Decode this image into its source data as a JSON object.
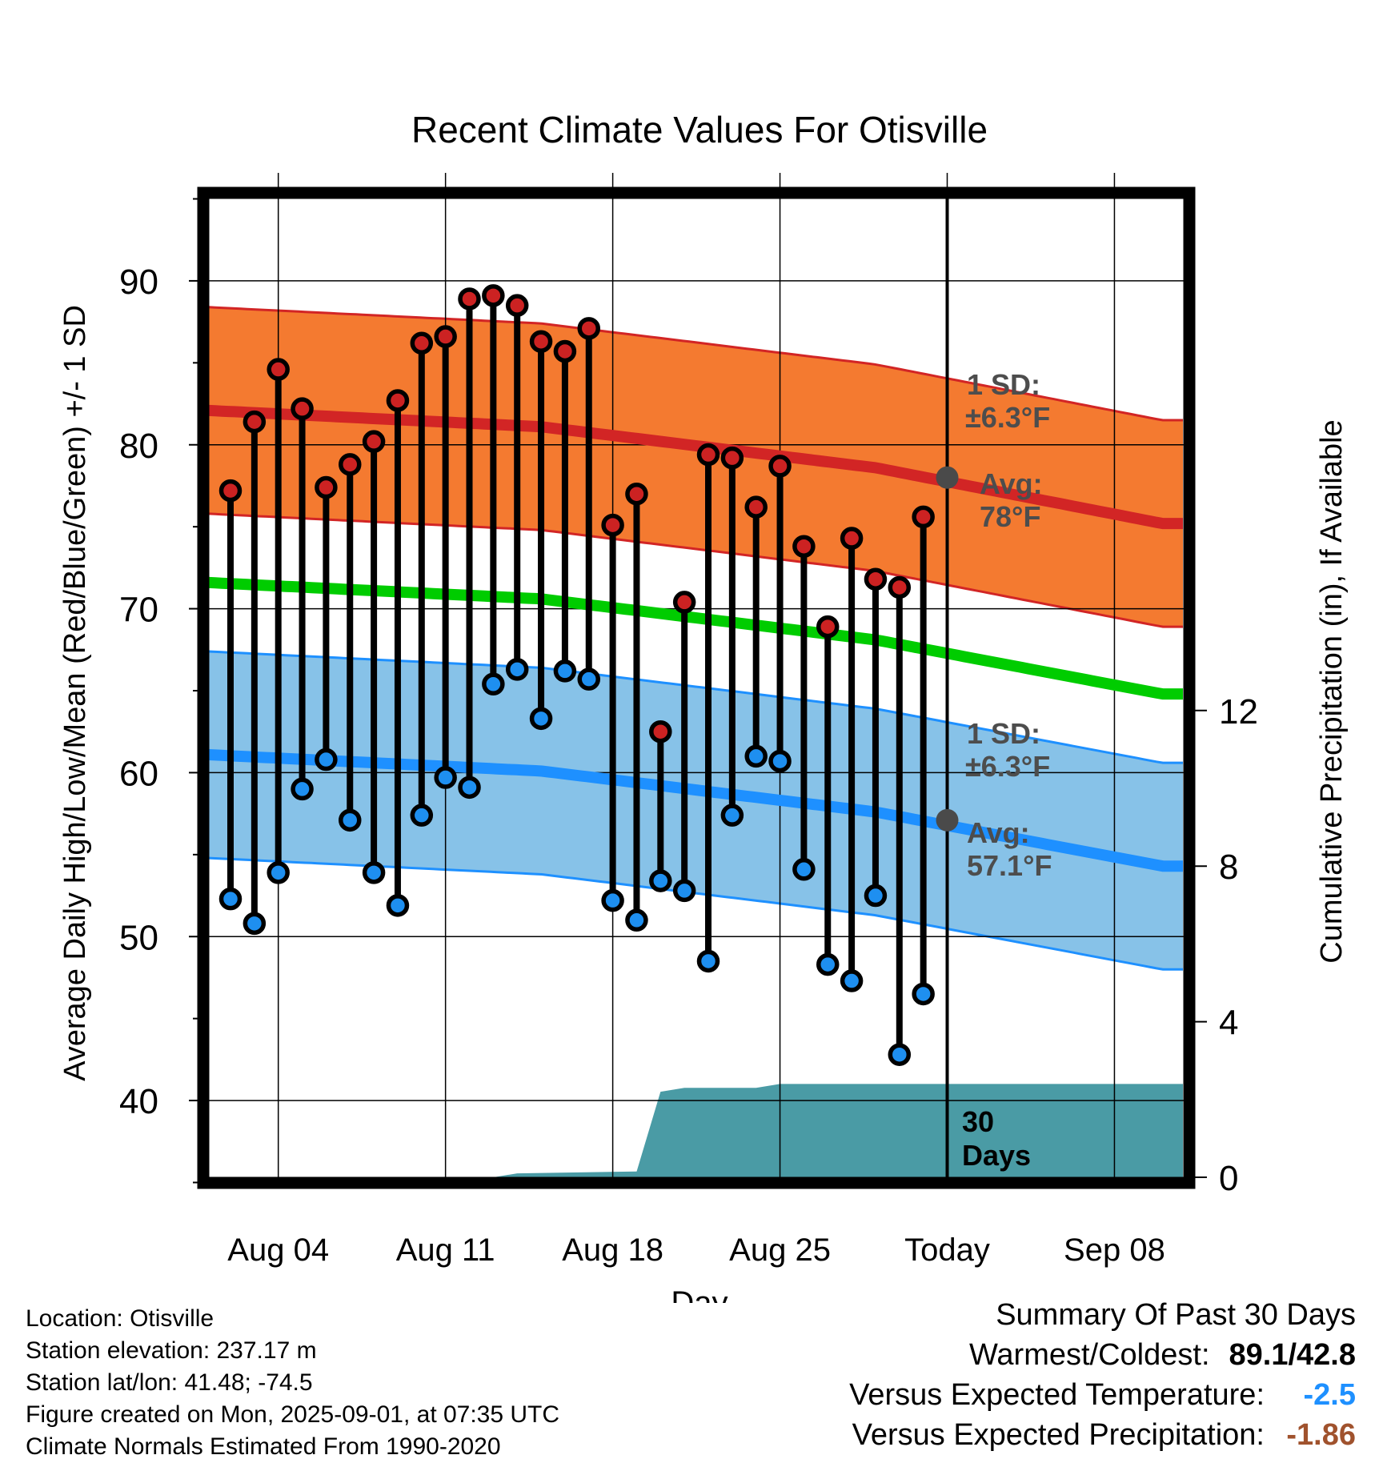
{
  "chart_data": {
    "type": "line",
    "title": "Recent Climate Values For Otisville",
    "xlabel": "Day",
    "ylabel": "Average Daily High/Low/Mean (Red/Blue/Green) +/- 1 SD",
    "y2label": "Cumulative Precipitation (in), If Available",
    "ylim": [
      35,
      95
    ],
    "y2lim": [
      0,
      24
    ],
    "yticks": [
      "40",
      "50",
      "60",
      "70",
      "80",
      "90"
    ],
    "y2ticks": [
      "0",
      "4",
      "8",
      "12"
    ],
    "xtick_labels": [
      "Aug 04",
      "Aug 11",
      "Aug 18",
      "Aug 25",
      "Today",
      "Sep 08"
    ],
    "dates": [
      "Aug 02",
      "Aug 03",
      "Aug 04",
      "Aug 05",
      "Aug 06",
      "Aug 07",
      "Aug 08",
      "Aug 09",
      "Aug 10",
      "Aug 11",
      "Aug 12",
      "Aug 13",
      "Aug 14",
      "Aug 15",
      "Aug 16",
      "Aug 17",
      "Aug 18",
      "Aug 19",
      "Aug 20",
      "Aug 21",
      "Aug 22",
      "Aug 23",
      "Aug 24",
      "Aug 25",
      "Aug 26",
      "Aug 27",
      "Aug 28",
      "Aug 29",
      "Aug 30",
      "Aug 31"
    ],
    "series": [
      {
        "name": "Daily High",
        "values": [
          77.2,
          81.4,
          84.6,
          82.2,
          77.4,
          78.8,
          80.2,
          82.7,
          86.2,
          86.6,
          88.9,
          89.1,
          88.5,
          86.3,
          85.7,
          87.1,
          75.1,
          77.0,
          62.5,
          70.4,
          79.4,
          79.2,
          76.2,
          78.7,
          73.8,
          68.9,
          74.3,
          71.8,
          71.3,
          75.6
        ]
      },
      {
        "name": "Daily Low",
        "values": [
          52.3,
          50.8,
          53.9,
          59.0,
          60.8,
          57.1,
          53.9,
          51.9,
          57.4,
          59.7,
          59.1,
          65.4,
          66.3,
          63.3,
          66.2,
          65.7,
          52.2,
          51.0,
          53.4,
          52.8,
          48.5,
          57.4,
          61.0,
          60.7,
          54.1,
          48.3,
          47.3,
          52.5,
          42.8,
          46.5
        ]
      },
      {
        "name": "Normal High",
        "x": [
          "Aug 01",
          "Aug 15",
          "Aug 29",
          "Sep 10"
        ],
        "values": [
          82.1,
          81.1,
          78.6,
          75.2
        ]
      },
      {
        "name": "Normal Low",
        "x": [
          "Aug 01",
          "Aug 15",
          "Aug 29",
          "Sep 10"
        ],
        "values": [
          61.1,
          60.1,
          57.6,
          54.3
        ]
      },
      {
        "name": "Normal Mean",
        "x": [
          "Aug 01",
          "Aug 15",
          "Aug 29",
          "Sep 10"
        ],
        "values": [
          71.6,
          70.6,
          68.1,
          64.8
        ]
      },
      {
        "name": "Cumulative Precipitation",
        "x": [
          "Aug 13",
          "Aug 14",
          "Aug 19",
          "Aug 20",
          "Aug 21",
          "Aug 24",
          "Aug 25",
          "Sep 10"
        ],
        "values": [
          0.0,
          0.1,
          0.15,
          2.2,
          2.3,
          2.3,
          2.4,
          2.4
        ]
      }
    ],
    "sd_band_f": 6.3,
    "annotations": {
      "high_sd_label": "1 SD:",
      "high_sd_value": "±6.3°F",
      "high_avg_label": "Avg:",
      "high_avg_value": "78°F",
      "low_sd_label": "1 SD:",
      "low_sd_value": "±6.3°F",
      "low_avg_label": "Avg:",
      "low_avg_value": "57.1°F",
      "days_label_1": "30",
      "days_label_2": "Days"
    },
    "today_marker": {
      "label": "Today",
      "high": 78.0,
      "low": 57.1
    },
    "colors": {
      "high_band": "#f47a30",
      "high_line": "#d22525",
      "low_band": "#87c2e8",
      "low_line": "#1e90ff",
      "mean_line": "#00cc00",
      "precip": "#4a9ba5",
      "high_marker": "#cc2222",
      "low_marker": "#1e8ff0"
    },
    "grid": true
  },
  "metadata": {
    "location": "Location: Otisville",
    "elevation": "Station elevation: 237.17 m",
    "latlon": "Station lat/lon: 41.48; -74.5",
    "created": "Figure created on Mon, 2025-09-01, at 07:35 UTC",
    "normals": "Climate Normals Estimated From 1990-2020"
  },
  "summary": {
    "heading": "Summary Of Past 30 Days",
    "warmest_coldest_label": "Warmest/Coldest:",
    "warmest_coldest_value": "89.1/42.8",
    "temp_label": "Versus Expected Temperature:",
    "temp_value": "-2.5",
    "precip_label": "Versus Expected Precipitation:",
    "precip_value": "-1.86"
  }
}
